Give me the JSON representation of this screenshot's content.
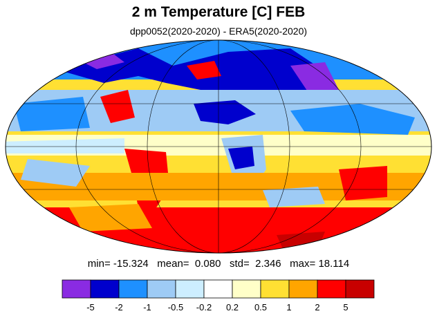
{
  "figure": {
    "title": "2 m Temperature [C] FEB",
    "subtitle": "dpp0052(2020-2020) - ERA5(2020-2020)"
  },
  "stats": {
    "min_label": "min=",
    "min": "-15.324",
    "mean_label": "mean=",
    "mean": "0.080",
    "std_label": "std=",
    "std": "2.346",
    "max_label": "max=",
    "max": "18.114"
  },
  "colorbar": {
    "colors": [
      "#8a2be2",
      "#0000cd",
      "#1e90ff",
      "#9ecbf5",
      "#cdeeff",
      "#ffffff",
      "#ffffc8",
      "#ffe033",
      "#ffa500",
      "#ff0000",
      "#c80000"
    ],
    "tick_labels": [
      "-5",
      "-2",
      "-1",
      "-0.5",
      "-0.2",
      "0.2",
      "0.5",
      "1",
      "2",
      "5"
    ]
  },
  "chart_data": {
    "type": "heatmap",
    "title": "2 m Temperature [C] FEB",
    "subtitle": "dpp0052(2020-2020) - ERA5(2020-2020)",
    "projection": "Mollweide, global",
    "value_range": [
      -15.324,
      18.114
    ],
    "contour_levels": [
      -5,
      -2,
      -1,
      -0.5,
      -0.2,
      0.2,
      0.5,
      1,
      2,
      5
    ],
    "grid": true
  }
}
